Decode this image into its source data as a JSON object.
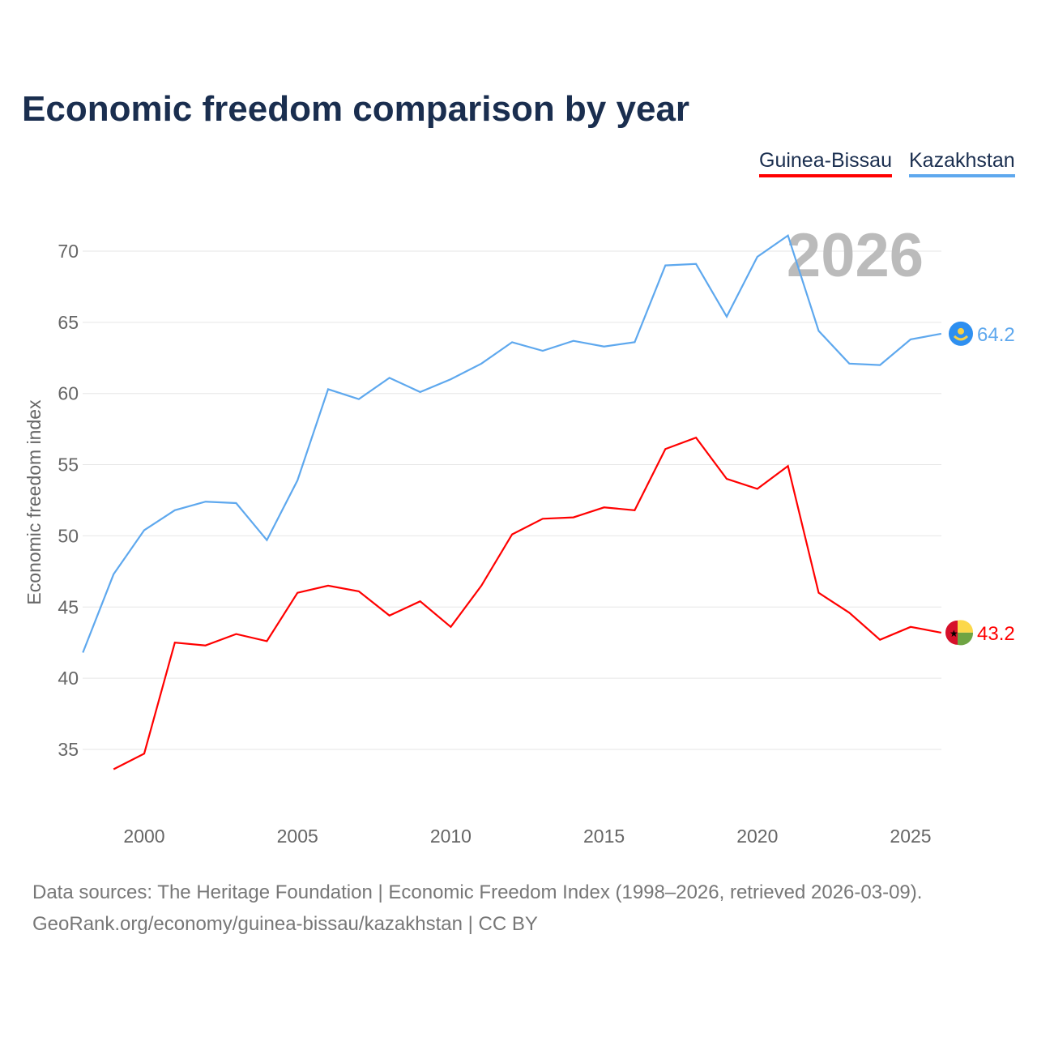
{
  "chart_data": {
    "type": "line",
    "title": "Economic freedom comparison by year",
    "xlabel": "",
    "ylabel": "Economic freedom index",
    "xlim": [
      1998,
      2026
    ],
    "ylim": [
      31,
      72
    ],
    "xticks": [
      2000,
      2005,
      2010,
      2015,
      2020,
      2025
    ],
    "yticks": [
      35,
      40,
      45,
      50,
      55,
      60,
      65,
      70
    ],
    "grid": true,
    "legend_placement": "top-right",
    "annotation_year": "2026",
    "series": [
      {
        "name": "Guinea-Bissau",
        "color": "#ff0000",
        "end_label": "43.2",
        "x": [
          1999,
          2000,
          2001,
          2002,
          2003,
          2004,
          2005,
          2006,
          2007,
          2008,
          2009,
          2010,
          2011,
          2012,
          2013,
          2014,
          2015,
          2016,
          2017,
          2018,
          2019,
          2020,
          2021,
          2022,
          2023,
          2024,
          2025,
          2026
        ],
        "values": [
          33.6,
          34.7,
          42.5,
          42.3,
          43.1,
          42.6,
          46.0,
          46.5,
          46.1,
          44.4,
          45.4,
          43.6,
          46.5,
          50.1,
          51.2,
          51.3,
          52.0,
          51.8,
          56.1,
          56.9,
          54.0,
          53.3,
          54.9,
          46.0,
          44.6,
          42.7,
          43.6,
          43.2
        ]
      },
      {
        "name": "Kazakhstan",
        "color": "#5ea8ee",
        "end_label": "64.2",
        "x": [
          1998,
          1999,
          2000,
          2001,
          2002,
          2003,
          2004,
          2005,
          2006,
          2007,
          2008,
          2009,
          2010,
          2011,
          2012,
          2013,
          2014,
          2015,
          2016,
          2017,
          2018,
          2019,
          2020,
          2021,
          2022,
          2023,
          2024,
          2025,
          2026
        ],
        "values": [
          41.8,
          47.3,
          50.4,
          51.8,
          52.4,
          52.3,
          49.7,
          53.9,
          60.3,
          59.6,
          61.1,
          60.1,
          61.0,
          62.1,
          63.6,
          63.0,
          63.7,
          63.3,
          63.6,
          69.0,
          69.1,
          65.4,
          69.6,
          71.1,
          64.4,
          62.1,
          62.0,
          63.8,
          64.2
        ]
      }
    ]
  },
  "footer": {
    "line1": "Data sources: The Heritage Foundation | Economic Freedom Index (1998–2026, retrieved 2026-03-09).",
    "line2": "GeoRank.org/economy/guinea-bissau/kazakhstan | CC BY"
  }
}
